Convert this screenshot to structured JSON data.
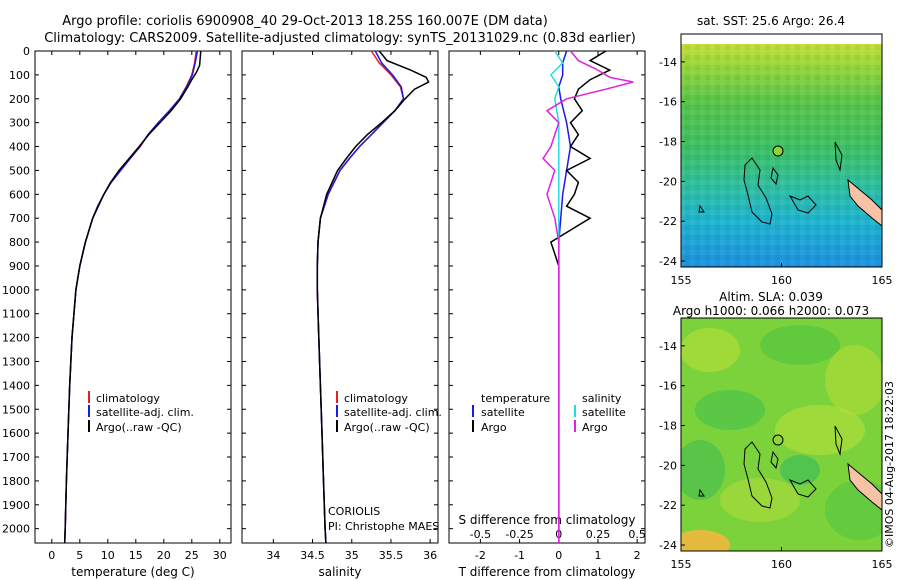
{
  "header": {
    "line1": "Argo profile: coriolis 6900908_40 29-Oct-2013 18.25S 160.007E (DM data)",
    "line2": "Climatology: CARS2009. Satellite-adjusted climatology: synTS_20131029.nc (0.83d earlier)"
  },
  "colors": {
    "climatology": "#e8201a",
    "satellite": "#1a1ae8",
    "argo": "#000000",
    "sat_diff": "#22dde0",
    "argo_s_diff": "#e020e0",
    "land": "#f7c2a6"
  },
  "depth_axis": {
    "ticks": [
      0,
      100,
      200,
      300,
      400,
      500,
      600,
      700,
      800,
      900,
      1000,
      1100,
      1200,
      1300,
      1400,
      1500,
      1600,
      1700,
      1800,
      1900,
      2000
    ],
    "range": [
      0,
      2060
    ]
  },
  "chart_data": [
    {
      "type": "line",
      "id": "temperature",
      "xlabel": "temperature (deg C)",
      "xticks": [
        0,
        5,
        10,
        15,
        20,
        25,
        30
      ],
      "xlim": [
        -3,
        32
      ],
      "legend": [
        "climatology",
        "satellite-adj. clim.",
        "Argo(..raw -QC)"
      ],
      "series": [
        {
          "name": "climatology",
          "color": "#e8201a",
          "depth": [
            0,
            50,
            100,
            150,
            200,
            250,
            300,
            350,
            400,
            450,
            500,
            550,
            600,
            650,
            700,
            800,
            900,
            1000,
            1200,
            1400,
            1600,
            1800,
            2000,
            2060
          ],
          "values": [
            25.8,
            25.5,
            25.0,
            24.0,
            22.8,
            21.0,
            19.0,
            17.2,
            15.8,
            14.0,
            12.2,
            10.5,
            9.3,
            8.2,
            7.3,
            6.0,
            5.0,
            4.3,
            3.6,
            3.2,
            2.9,
            2.6,
            2.4,
            2.3
          ]
        },
        {
          "name": "satellite-adj. clim.",
          "color": "#1a1ae8",
          "depth": [
            0,
            50,
            100,
            150,
            200,
            250,
            300,
            350,
            400,
            450,
            500,
            550,
            600,
            650,
            700,
            800,
            900,
            1000,
            1200,
            1400,
            1600,
            1800,
            2000,
            2060
          ],
          "values": [
            26.0,
            25.6,
            25.1,
            24.1,
            22.8,
            21.0,
            19.0,
            17.2,
            15.7,
            14.0,
            12.3,
            10.6,
            9.3,
            8.2,
            7.3,
            6.0,
            5.0,
            4.3,
            3.6,
            3.2,
            2.9,
            2.6,
            2.4,
            2.3
          ]
        },
        {
          "name": "Argo(..raw -QC)",
          "color": "#000000",
          "depth": [
            0,
            30,
            60,
            90,
            120,
            150,
            200,
            250,
            300,
            350,
            400,
            450,
            500,
            550,
            600,
            700,
            800,
            900,
            1000,
            1200,
            1400,
            1600,
            1800,
            2000,
            2060
          ],
          "values": [
            26.6,
            26.5,
            26.4,
            25.8,
            25.0,
            24.3,
            23.0,
            21.3,
            19.3,
            17.3,
            15.6,
            13.8,
            12.0,
            10.5,
            9.3,
            7.3,
            6.0,
            5.0,
            4.3,
            3.6,
            3.2,
            2.9,
            2.6,
            2.4,
            2.3
          ]
        }
      ]
    },
    {
      "type": "line",
      "id": "salinity",
      "xlabel": "salinity",
      "xticks": [
        34,
        34.5,
        35,
        35.5,
        36
      ],
      "xlim": [
        33.6,
        36.1
      ],
      "legend": [
        "climatology",
        "satellite-adj. clim.",
        "Argo(..raw -QC)"
      ],
      "annotation": [
        "CORIOLIS",
        "PI: Christophe MAES"
      ],
      "series": [
        {
          "name": "climatology",
          "color": "#e8201a",
          "depth": [
            0,
            50,
            100,
            150,
            200,
            250,
            300,
            350,
            400,
            450,
            500,
            600,
            700,
            800,
            900,
            1000,
            1200,
            1400,
            1600,
            1800,
            2000,
            2060
          ],
          "values": [
            35.25,
            35.35,
            35.5,
            35.62,
            35.66,
            35.55,
            35.4,
            35.25,
            35.1,
            34.97,
            34.85,
            34.7,
            34.6,
            34.57,
            34.56,
            34.56,
            34.58,
            34.6,
            34.62,
            34.64,
            34.66,
            34.67
          ]
        },
        {
          "name": "satellite-adj. clim.",
          "color": "#1a1ae8",
          "depth": [
            0,
            50,
            100,
            150,
            200,
            250,
            300,
            350,
            400,
            450,
            500,
            600,
            700,
            800,
            900,
            1000,
            1200,
            1400,
            1600,
            1800,
            2000,
            2060
          ],
          "values": [
            35.3,
            35.38,
            35.52,
            35.63,
            35.66,
            35.55,
            35.4,
            35.25,
            35.1,
            34.97,
            34.85,
            34.7,
            34.6,
            34.57,
            34.56,
            34.56,
            34.58,
            34.6,
            34.62,
            34.64,
            34.66,
            34.67
          ]
        },
        {
          "name": "Argo(..raw -QC)",
          "color": "#000000",
          "depth": [
            0,
            40,
            80,
            110,
            130,
            160,
            200,
            250,
            300,
            350,
            400,
            450,
            500,
            600,
            700,
            800,
            900,
            1000,
            1200,
            1400,
            1600,
            1800,
            2000,
            2060
          ],
          "values": [
            35.35,
            35.45,
            35.75,
            35.95,
            35.98,
            35.8,
            35.68,
            35.55,
            35.38,
            35.2,
            35.05,
            34.93,
            34.82,
            34.68,
            34.6,
            34.57,
            34.56,
            34.56,
            34.58,
            34.6,
            34.62,
            34.64,
            34.66,
            34.67
          ]
        }
      ]
    },
    {
      "type": "line",
      "id": "difference",
      "xlabel": "T difference from climatology",
      "xlabel_top": "S difference from climatology",
      "xticks": [
        -2,
        -1,
        0,
        1,
        2
      ],
      "s_ticks": [
        "-0.5",
        "-0.25",
        "0",
        "0.25",
        "0.5"
      ],
      "s_tick_pos": [
        -2,
        -1,
        0,
        1,
        2
      ],
      "xlim": [
        -2.8,
        2.2
      ],
      "legend_temperature": {
        "title": "temperature",
        "items": [
          "satellite",
          "Argo"
        ]
      },
      "legend_salinity": {
        "title": "salinity",
        "items": [
          "satellite",
          "Argo"
        ]
      },
      "series": [
        {
          "name": "satellite",
          "group": "temperature",
          "color": "#1a1ae8",
          "depth": [
            0,
            50,
            100,
            150,
            200,
            300,
            400,
            500,
            600,
            800,
            1000,
            1500,
            2060
          ],
          "values": [
            0.2,
            0.1,
            0.1,
            0.0,
            0.05,
            0.2,
            0.3,
            0.2,
            0.1,
            0.0,
            0.0,
            0.0,
            0.0
          ]
        },
        {
          "name": "Argo",
          "group": "temperature",
          "color": "#000000",
          "depth": [
            0,
            40,
            80,
            120,
            160,
            200,
            250,
            300,
            350,
            400,
            450,
            500,
            550,
            600,
            650,
            700,
            750,
            800,
            900,
            1000,
            1500,
            2060
          ],
          "values": [
            1.2,
            0.8,
            1.3,
            0.8,
            0.5,
            0.4,
            0.6,
            0.3,
            0.5,
            0.3,
            0.8,
            0.2,
            0.5,
            0.4,
            0.2,
            0.8,
            0.3,
            -0.2,
            0.0,
            0.0,
            0.0,
            0.0
          ]
        },
        {
          "name": "satellite",
          "group": "salinity",
          "color": "#22dde0",
          "depth": [
            0,
            50,
            100,
            150,
            200,
            300,
            400,
            500,
            600,
            800,
            1000,
            1500,
            2060
          ],
          "values": [
            -0.1,
            0.1,
            -0.2,
            0.0,
            -0.1,
            0.0,
            0.0,
            0.0,
            0.0,
            0.0,
            0.0,
            0.0,
            0.0
          ]
        },
        {
          "name": "Argo",
          "group": "salinity",
          "color": "#e020e0",
          "depth": [
            0,
            40,
            80,
            110,
            130,
            160,
            200,
            250,
            300,
            350,
            400,
            450,
            500,
            550,
            600,
            700,
            800,
            1000,
            1500,
            2060
          ],
          "values": [
            0.3,
            0.5,
            1.0,
            1.3,
            1.9,
            1.2,
            0.2,
            -0.3,
            0.0,
            -0.1,
            -0.2,
            -0.4,
            -0.1,
            -0.2,
            -0.3,
            -0.1,
            0.0,
            0.0,
            0.0,
            0.0
          ]
        }
      ]
    },
    {
      "type": "heatmap",
      "id": "sst_map",
      "title": "sat. SST: 25.6  Argo: 26.4",
      "xticks": [
        155,
        160,
        165
      ],
      "yticks": [
        -14,
        -16,
        -18,
        -20,
        -22,
        -24
      ],
      "xlim": [
        155,
        165
      ],
      "ylim": [
        -24.3,
        -12.6
      ],
      "float_position": {
        "lon": 160.007,
        "lat": -18.25
      }
    },
    {
      "type": "heatmap",
      "id": "sla_map",
      "title": "Altim. SLA: 0.039",
      "subtitle": "Argo h1000: 0.066 h2000: 0.073",
      "xticks": [
        155,
        160,
        165
      ],
      "yticks": [
        -14,
        -16,
        -18,
        -20,
        -22,
        -24
      ],
      "xlim": [
        155,
        165
      ],
      "ylim": [
        -24.3,
        -12.6
      ],
      "float_position": {
        "lon": 160.007,
        "lat": -18.25
      }
    }
  ],
  "footer": {
    "credit": "©IMOS 04-Aug-2017 18:22:03"
  }
}
